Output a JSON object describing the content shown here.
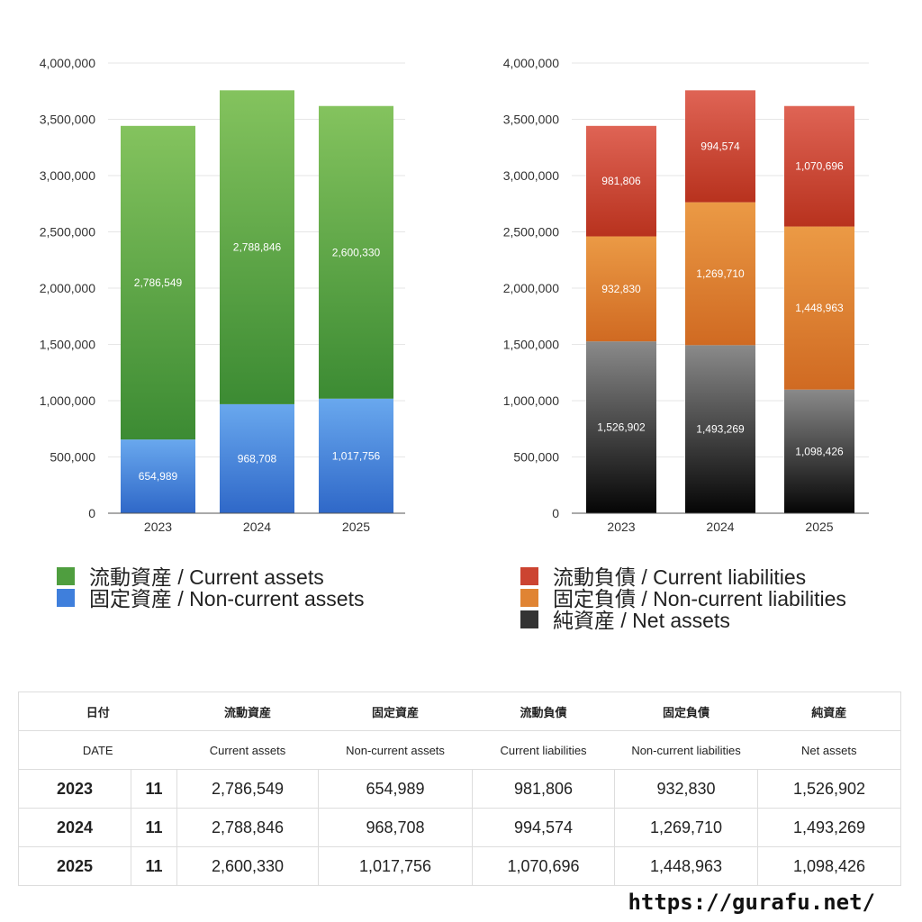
{
  "chart_data": [
    {
      "type": "bar",
      "stacked": true,
      "categories": [
        "2023",
        "2024",
        "2025"
      ],
      "ylim": [
        0,
        4000000
      ],
      "yticks": [
        "0",
        "500,000",
        "1,000,000",
        "1,500,000",
        "2,000,000",
        "2,500,000",
        "3,000,000",
        "3,500,000",
        "4,000,000"
      ],
      "series": [
        {
          "name": "固定資産 / Non-current assets",
          "values": [
            654989,
            968708,
            1017756
          ],
          "labels": [
            "654,989",
            "968,708",
            "1,017,756"
          ],
          "color_top": "#69a8ee",
          "color_bottom": "#2f68c8"
        },
        {
          "name": "流動資産 / Current assets",
          "values": [
            2786549,
            2788846,
            2600330
          ],
          "labels": [
            "2,786,549",
            "2,788,846",
            "2,600,330"
          ],
          "color_top": "#84c35e",
          "color_bottom": "#3c8b33"
        }
      ],
      "legend": [
        {
          "label": "流動資産 / Current assets",
          "color": "#4f9e3f"
        },
        {
          "label": "固定資産 / Non-current assets",
          "color": "#3f7fdc"
        }
      ]
    },
    {
      "type": "bar",
      "stacked": true,
      "categories": [
        "2023",
        "2024",
        "2025"
      ],
      "ylim": [
        0,
        4000000
      ],
      "yticks": [
        "0",
        "500,000",
        "1,000,000",
        "1,500,000",
        "2,000,000",
        "2,500,000",
        "3,000,000",
        "3,500,000",
        "4,000,000"
      ],
      "series": [
        {
          "name": "純資産 / Net assets",
          "values": [
            1526902,
            1493269,
            1098426
          ],
          "labels": [
            "1,526,902",
            "1,493,269",
            "1,098,426"
          ],
          "color_top": "#8a8a8a",
          "color_bottom": "#050505"
        },
        {
          "name": "固定負債 / Non-current liabilities",
          "values": [
            932830,
            1269710,
            1448963
          ],
          "labels": [
            "932,830",
            "1,269,710",
            "1,448,963"
          ],
          "color_top": "#eb9a45",
          "color_bottom": "#d06a22"
        },
        {
          "name": "流動負債 / Current liabilities",
          "values": [
            981806,
            994574,
            1070696
          ],
          "labels": [
            "981,806",
            "994,574",
            "1,070,696"
          ],
          "color_top": "#df6455",
          "color_bottom": "#b8321e"
        }
      ],
      "legend": [
        {
          "label": "流動負債 / Current liabilities",
          "color": "#cc4431"
        },
        {
          "label": "固定負債 / Non-current liabilities",
          "color": "#e08433"
        },
        {
          "label": "純資産 / Net assets",
          "color": "#333333"
        }
      ]
    }
  ],
  "table": {
    "header_jp": [
      "日付",
      "流動資産",
      "固定資産",
      "流動負債",
      "固定負債",
      "純資産"
    ],
    "header_en": [
      "DATE",
      "Current assets",
      "Non-current assets",
      "Current liabilities",
      "Non-current liabilities",
      "Net assets"
    ],
    "rows": [
      {
        "year": "2023",
        "month": "11",
        "values": [
          "2,786,549",
          "654,989",
          "981,806",
          "932,830",
          "1,526,902"
        ]
      },
      {
        "year": "2024",
        "month": "11",
        "values": [
          "2,788,846",
          "968,708",
          "994,574",
          "1,269,710",
          "1,493,269"
        ]
      },
      {
        "year": "2025",
        "month": "11",
        "values": [
          "2,600,330",
          "1,017,756",
          "1,070,696",
          "1,448,963",
          "1,098,426"
        ]
      }
    ]
  },
  "footer": {
    "url": "https://gurafu.net/"
  }
}
